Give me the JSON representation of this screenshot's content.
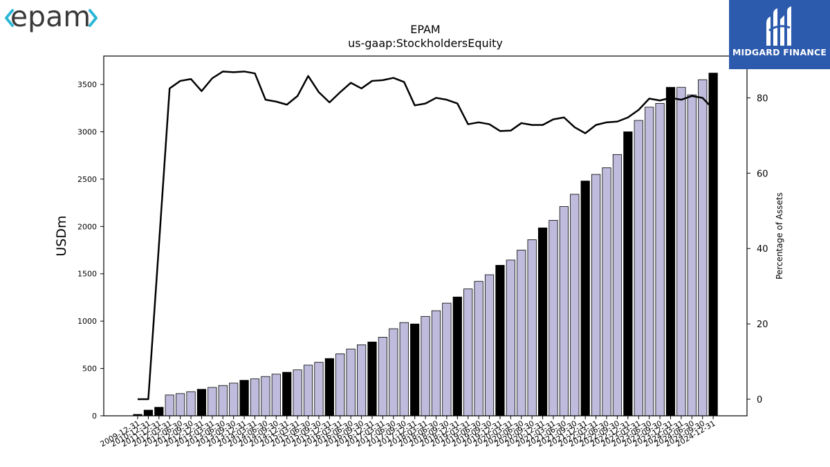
{
  "logos": {
    "epam": "epam",
    "midgard": "MIDGARD FINANCE"
  },
  "colors": {
    "bar_quarter": "#bebbdc",
    "bar_year_end": "#000000",
    "line": "#000000",
    "epam_chevron": "#2bb6d6",
    "epam_text": "#3a3a3a",
    "midgard_bg": "#2c5aad"
  },
  "chart_data": {
    "type": "bar",
    "title": "EPAM",
    "subtitle": "us-gaap:StockholdersEquity",
    "ylabel": "USDm",
    "y2label": "Percentage of Assets",
    "ylim": [
      0,
      3800
    ],
    "y2lim": [
      -4.4,
      91.1
    ],
    "yticks": [
      0,
      500,
      1000,
      1500,
      2000,
      2500,
      3000,
      3500
    ],
    "y2ticks": [
      0,
      20,
      40,
      60,
      80
    ],
    "grid": false,
    "categories": [
      "2009-12-31",
      "2010-12-31",
      "2011-12-31",
      "2012-03-31",
      "2012-06-30",
      "2012-09-30",
      "2012-12-31",
      "2013-03-31",
      "2013-06-30",
      "2013-09-30",
      "2013-12-31",
      "2014-03-31",
      "2014-06-30",
      "2014-09-30",
      "2014-12-31",
      "2015-03-31",
      "2015-06-30",
      "2015-09-30",
      "2015-12-31",
      "2016-03-31",
      "2016-06-30",
      "2016-09-30",
      "2016-12-31",
      "2017-03-31",
      "2017-06-30",
      "2017-09-30",
      "2017-12-31",
      "2018-03-31",
      "2018-06-30",
      "2018-09-30",
      "2018-12-31",
      "2019-03-31",
      "2019-06-30",
      "2019-09-30",
      "2019-12-31",
      "2020-03-31",
      "2020-06-30",
      "2020-09-30",
      "2020-12-31",
      "2021-03-31",
      "2021-06-30",
      "2021-09-30",
      "2021-12-31",
      "2022-03-31",
      "2022-06-30",
      "2022-09-30",
      "2022-12-31",
      "2023-03-31",
      "2023-06-30",
      "2023-09-30",
      "2023-12-31",
      "2024-03-31",
      "2024-06-30",
      "2024-09-30",
      "2024-12-31"
    ],
    "visible_tick_labels": [
      "2009-12-31",
      "2010-12-31",
      "2011-12-31",
      "2012-03-31",
      "2012-06-30",
      "2012-09-30",
      "2012-12-31",
      "2013-03-31",
      "2013-06-30",
      "2013-09-30",
      "2013-12-31",
      "2014-03-31",
      "2014-06-30",
      "2014-09-30",
      "2014-12-31",
      "2015-03-31",
      "2015-06-30",
      "2015-09-30",
      "2015-12-31",
      "2016-03-31",
      "2016-06-30",
      "2016-09-30",
      "2016-12-31",
      "2017-03-31",
      "2017-06-30",
      "2017-09-30",
      "2017-12-31",
      "2018-03-31",
      "2018-06-30",
      "2018-09-30",
      "2018-12-31",
      "2019-03-31",
      "2019-06-30",
      "2019-09-30",
      "2019-12-31",
      "2020-03-31",
      "2020-06-30",
      "2020-09-30",
      "2020-12-31",
      "2021-03-31",
      "2021-06-30",
      "2021-09-30",
      "2021-12-31",
      "2022-03-31",
      "2022-06-30",
      "2022-09-30",
      "2022-12-31",
      "2023-03-31",
      "2023-06-30",
      "2023-09-30",
      "2023-12-31",
      "2024-03-31",
      "2024-06-30",
      "2024-09-30",
      "2024-12-31"
    ],
    "series": [
      {
        "kind": "bar",
        "axis": "left",
        "values": [
          15,
          60,
          90,
          220,
          235,
          255,
          280,
          300,
          320,
          345,
          375,
          390,
          415,
          440,
          460,
          485,
          535,
          565,
          605,
          655,
          705,
          750,
          780,
          830,
          920,
          985,
          970,
          1050,
          1110,
          1190,
          1255,
          1340,
          1420,
          1490,
          1590,
          1645,
          1750,
          1860,
          1985,
          2065,
          2210,
          2340,
          2480,
          2550,
          2620,
          2760,
          3000,
          3120,
          3260,
          3300,
          3470,
          3470,
          3390,
          3550,
          3620
        ],
        "year_end": [
          true,
          true,
          true,
          false,
          false,
          false,
          true,
          false,
          false,
          false,
          true,
          false,
          false,
          false,
          true,
          false,
          false,
          false,
          true,
          false,
          false,
          false,
          true,
          false,
          false,
          false,
          true,
          false,
          false,
          false,
          true,
          false,
          false,
          false,
          true,
          false,
          false,
          false,
          true,
          false,
          false,
          false,
          true,
          false,
          false,
          false,
          true,
          false,
          false,
          false,
          true,
          false,
          false,
          false,
          true
        ]
      },
      {
        "kind": "line",
        "axis": "right",
        "values": [
          0,
          0,
          41,
          82.5,
          84.5,
          85,
          81.8,
          85.2,
          87,
          86.8,
          87,
          86.5,
          79.5,
          79,
          78.2,
          80.5,
          85.8,
          81.5,
          78.8,
          81.5,
          84,
          82.5,
          84.5,
          84.7,
          85.3,
          84.2,
          78,
          78.5,
          80,
          79.5,
          78.5,
          73,
          73.5,
          73,
          71.2,
          71.3,
          73.3,
          72.8,
          72.8,
          74.3,
          74.8,
          72.2,
          70.6,
          72.8,
          73.5,
          73.7,
          74.8,
          76.8,
          79.8,
          79.3,
          80,
          79.5,
          80.5,
          80,
          77
        ]
      }
    ]
  }
}
